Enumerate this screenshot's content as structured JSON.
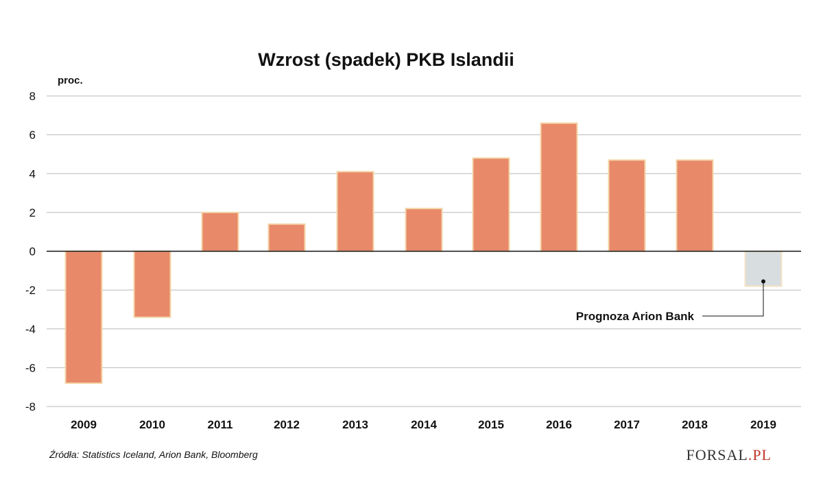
{
  "chart_data": {
    "type": "bar",
    "title": "Wzrost (spadek) PKB Islandii",
    "ylabel": "proc.",
    "xlabel": "",
    "categories": [
      "2009",
      "2010",
      "2011",
      "2012",
      "2013",
      "2014",
      "2015",
      "2016",
      "2017",
      "2018",
      "2019"
    ],
    "values": [
      -6.8,
      -3.4,
      2.0,
      1.4,
      4.1,
      2.2,
      4.8,
      6.6,
      4.7,
      4.7,
      -1.8
    ],
    "forecast": [
      false,
      false,
      false,
      false,
      false,
      false,
      false,
      false,
      false,
      false,
      true
    ],
    "ylim": [
      -8,
      8
    ],
    "yticks": [
      8,
      6,
      4,
      2,
      0,
      -2,
      -4,
      -6,
      -8
    ],
    "grid": true,
    "colors": {
      "actual": "#e8896a",
      "actual_edge": "#f4d6a8",
      "forecast": "#d8dde0",
      "forecast_edge": "#f4e3c4"
    },
    "annotation": {
      "text": "Prognoza Arion Bank",
      "target": "2019"
    }
  },
  "source": "Źródła: Statistics Iceland, Arion Bank, Bloomberg",
  "logo": {
    "text": "FORSAL",
    "suffix": ".PL"
  }
}
